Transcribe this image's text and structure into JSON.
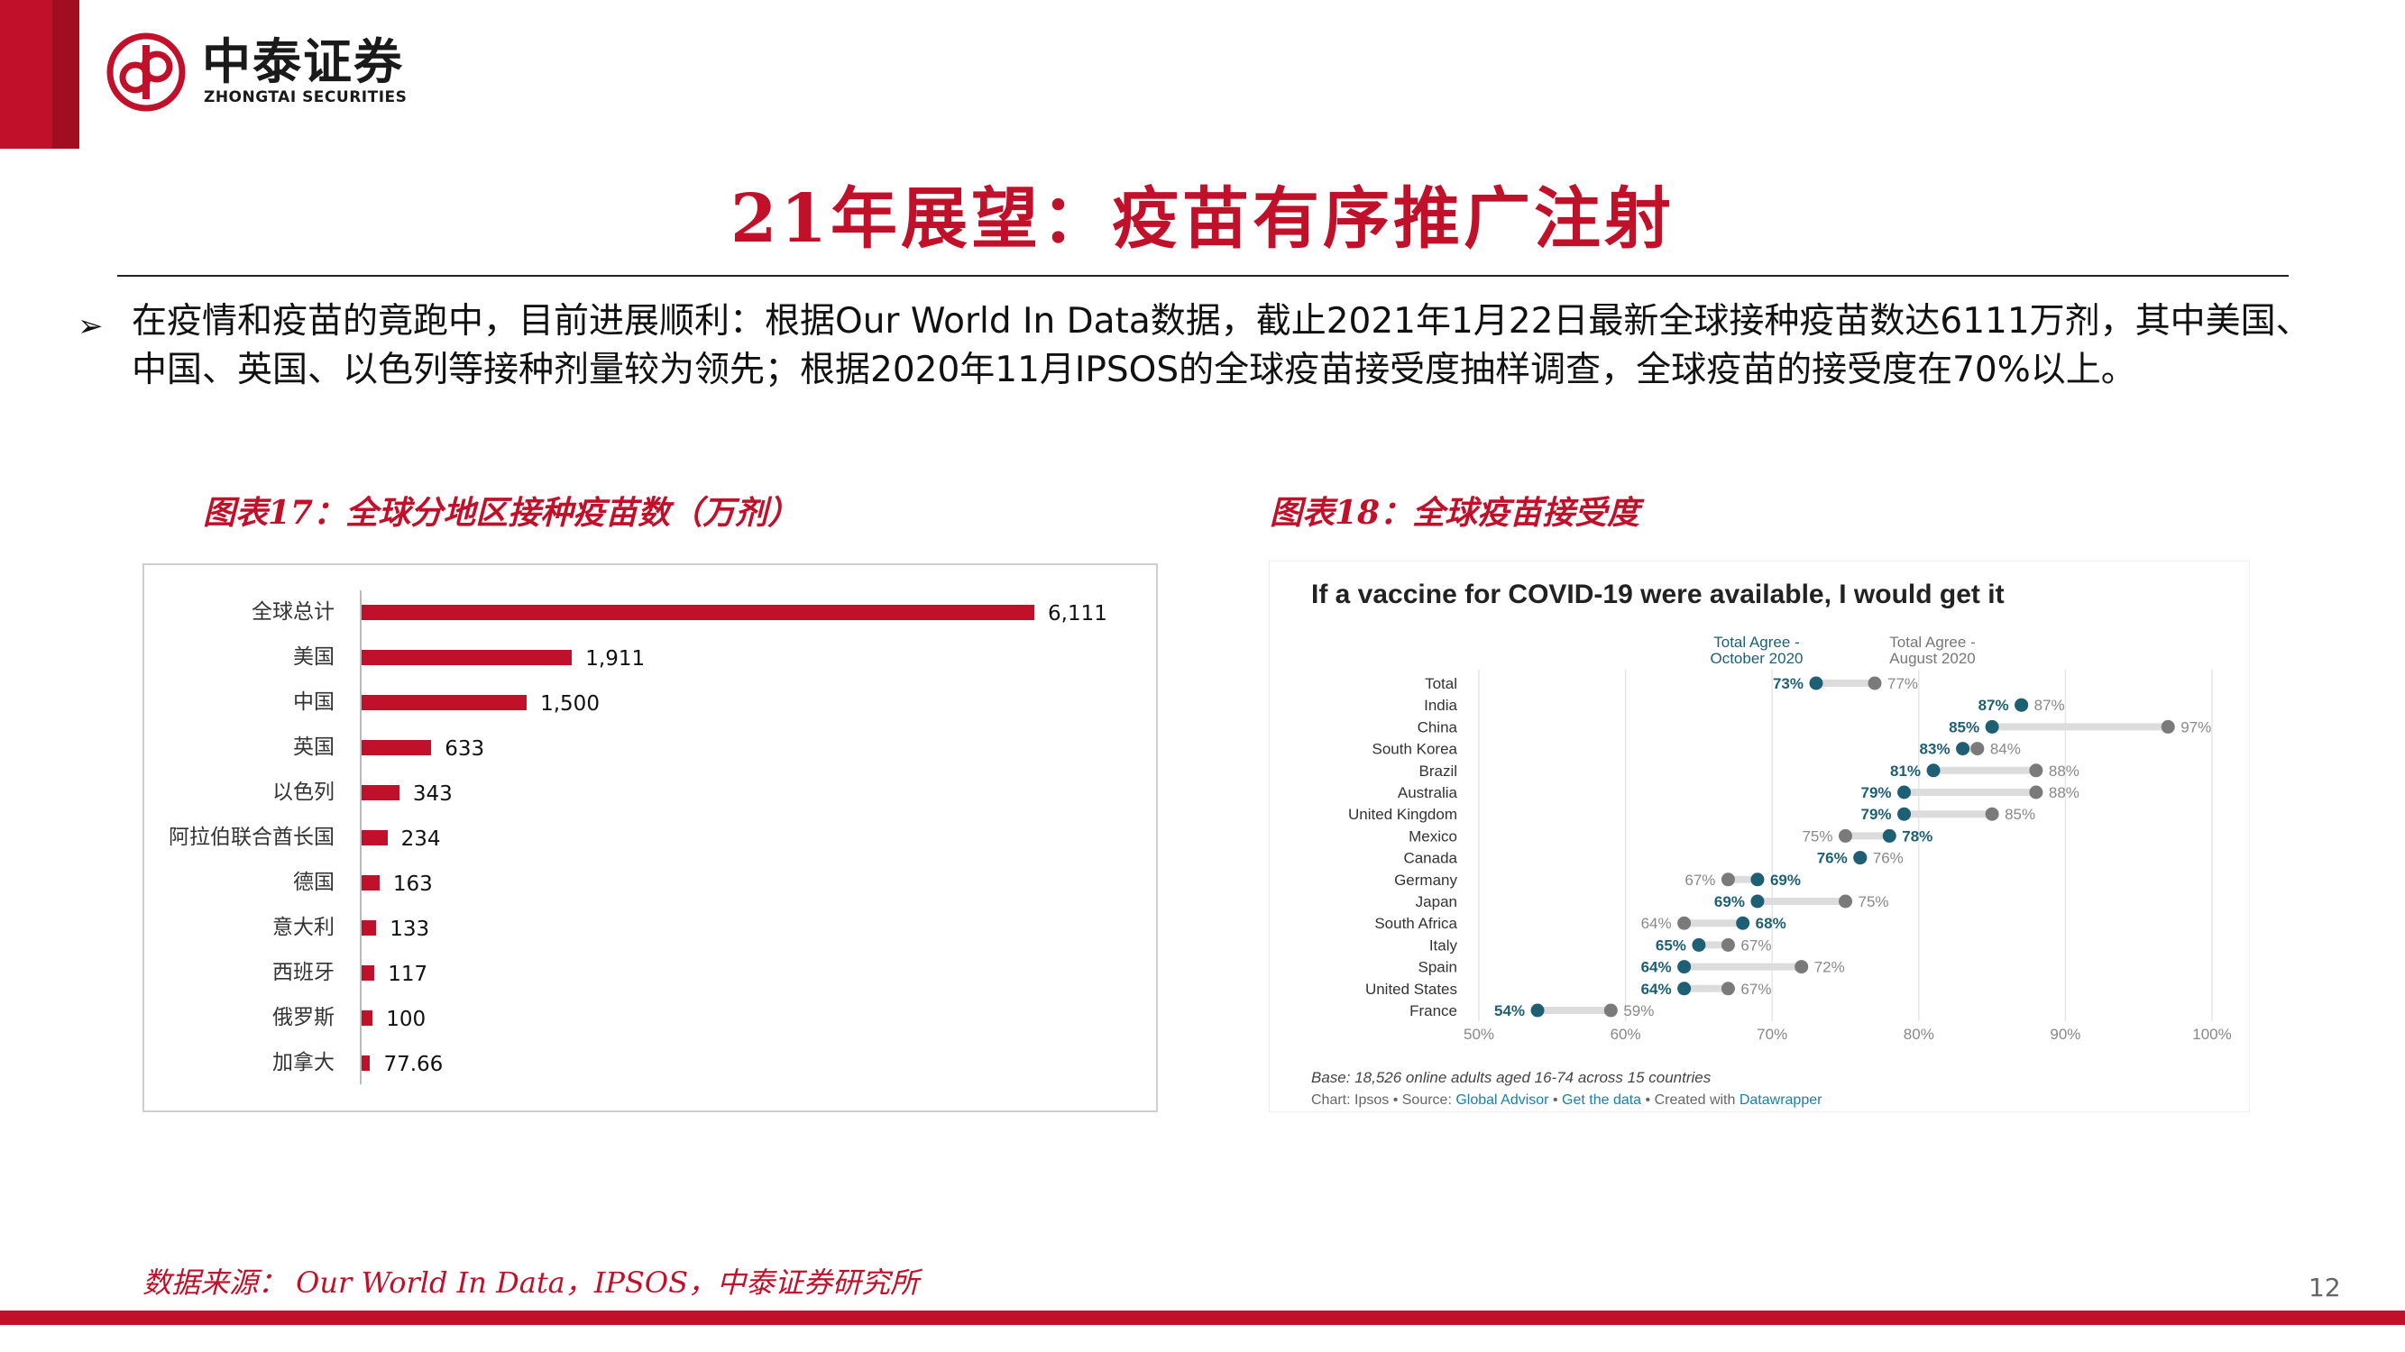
{
  "brand": {
    "name_cn": "中泰证券",
    "name_en": "ZHONGTAI SECURITIES",
    "color": "#c0102a"
  },
  "title": "21年展望：疫苗有序推广注射",
  "bullet": {
    "icon": "arrow-bullet-icon",
    "text": "在疫情和疫苗的竟跑中，目前进展顺利：根据Our World In Data数据，截止2021年1月22日最新全球接种疫苗数达6111万剂，其中美国、中国、英国、以色列等接种剂量较为领先；根据2020年11月IPSOS的全球疫苗接受度抽样调查，全球疫苗的接受度在70%以上。"
  },
  "figure17": {
    "caption": "图表17：全球分地区接种疫苗数（万剂）"
  },
  "figure18": {
    "caption": "图表18：全球疫苗接受度"
  },
  "chart_data": [
    {
      "type": "bar",
      "orientation": "horizontal",
      "categories": [
        "全球总计",
        "美国",
        "中国",
        "英国",
        "以色列",
        "阿拉伯联合酋长国",
        "德国",
        "意大利",
        "西班牙",
        "俄罗斯",
        "加拿大"
      ],
      "values": [
        6111,
        1911,
        1500,
        633,
        343,
        234,
        163,
        133,
        117,
        100,
        77.66
      ],
      "value_labels": [
        "6,111",
        "1,911",
        "1,500",
        "633",
        "343",
        "234",
        "163",
        "133",
        "117",
        "100",
        "77.66"
      ],
      "color": "#c0102a",
      "grid": false
    },
    {
      "type": "scatter",
      "subtype": "dot-plot",
      "title": "If a vaccine for COVID-19 were available, I would get it",
      "legend": {
        "oct": "Total Agree -\nOctober 2020",
        "aug": "Total Agree -\nAugust 2020"
      },
      "categories": [
        "Total",
        "India",
        "China",
        "South Korea",
        "Brazil",
        "Australia",
        "United Kingdom",
        "Mexico",
        "Canada",
        "Germany",
        "Japan",
        "South Africa",
        "Italy",
        "Spain",
        "United States",
        "France"
      ],
      "series": [
        {
          "name": "Total Agree - October 2020",
          "color": "#1f5f73",
          "values": [
            73,
            87,
            85,
            83,
            81,
            79,
            79,
            78,
            76,
            69,
            69,
            68,
            65,
            64,
            64,
            54
          ]
        },
        {
          "name": "Total Agree - August 2020",
          "color": "#7a7a7a",
          "values": [
            77,
            87,
            97,
            84,
            88,
            88,
            85,
            75,
            76,
            67,
            75,
            64,
            67,
            72,
            67,
            59
          ]
        }
      ],
      "x_ticks": [
        "50%",
        "60%",
        "70%",
        "80%",
        "90%",
        "100%"
      ],
      "xlim": [
        50,
        100
      ],
      "grid": true,
      "footnote": "Base: 18,526 online adults aged 16-74 across 15 countries",
      "credit": {
        "prefix": "Chart: Ipsos • Source: ",
        "source_link": "Global Advisor",
        "sep1": " • ",
        "data_link": "Get the data",
        "sep2": " • Created with ",
        "tool_link": "Datawrapper"
      }
    }
  ],
  "source": "数据来源： Our World In Data，IPSOS，中泰证券研究所",
  "page_number": "12"
}
